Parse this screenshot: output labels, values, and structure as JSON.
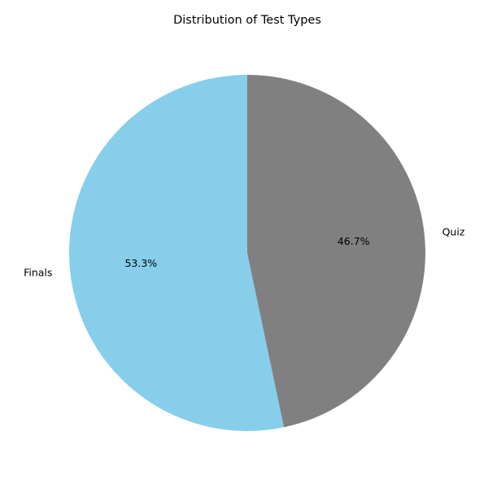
{
  "chart_data": {
    "type": "pie",
    "title": "Distribution of Test Types",
    "slices": [
      {
        "label": "Finals",
        "value": 53.3,
        "percent_label": "53.3%",
        "color": "#87CEEB"
      },
      {
        "label": "Quiz",
        "value": 46.7,
        "percent_label": "46.7%",
        "color": "#808080"
      }
    ],
    "start_angle_deg": 90,
    "direction": "counterclockwise",
    "legend": "none"
  }
}
